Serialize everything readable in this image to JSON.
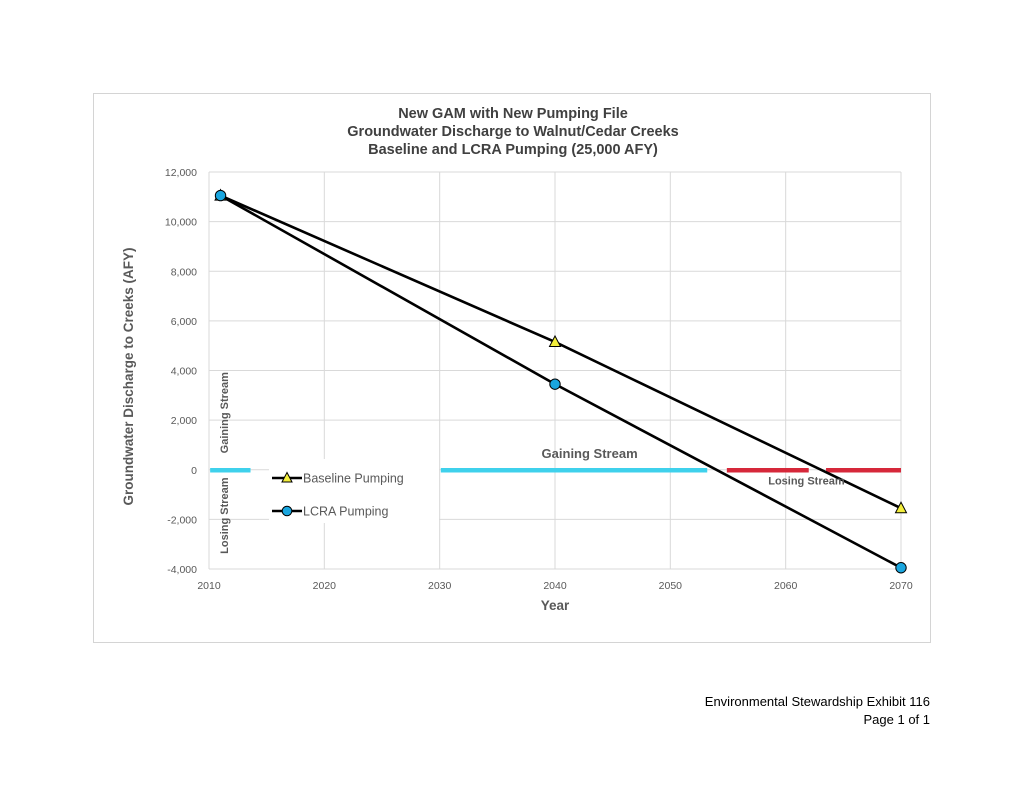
{
  "chart_data": {
    "type": "line",
    "title_lines": [
      "New GAM with New Pumping File",
      "Groundwater Discharge to Walnut/Cedar Creeks",
      "Baseline and LCRA Pumping (25,000 AFY)"
    ],
    "xlabel": "Year",
    "ylabel": "Groundwater Discharge to Creeks (AFY)",
    "xlim": [
      2010,
      2070
    ],
    "ylim": [
      -4000,
      12000
    ],
    "x_ticks": [
      2010,
      2020,
      2030,
      2040,
      2050,
      2060,
      2070
    ],
    "x_tick_labels": [
      "2010",
      "2020",
      "2030",
      "2040",
      "2050",
      "2060",
      "2070"
    ],
    "y_ticks": [
      -4000,
      -2000,
      0,
      2000,
      4000,
      6000,
      8000,
      10000,
      12000
    ],
    "y_tick_labels": [
      "-4,000",
      "-2,000",
      "0",
      "2,000",
      "4,000",
      "6,000",
      "8,000",
      "10,000",
      "12,000"
    ],
    "grid": true,
    "legend_position": "left",
    "series": [
      {
        "name": "Baseline Pumping",
        "marker": "triangle",
        "marker_color": "#f3ee3c",
        "line_color": "#000000",
        "x": [
          2011,
          2040,
          2070
        ],
        "y": [
          11050,
          5150,
          -1550
        ]
      },
      {
        "name": "LCRA Pumping",
        "marker": "circle",
        "marker_color": "#1aa6df",
        "line_color": "#000000",
        "x": [
          2011,
          2040,
          2070
        ],
        "y": [
          11050,
          3450,
          -3950
        ]
      }
    ],
    "annotations": [
      {
        "text": "Gaining Stream",
        "x": 2043,
        "y": 620,
        "rotate": 0,
        "size": 13
      },
      {
        "text": "Losing Stream",
        "x": 2061.8,
        "y": -480,
        "rotate": 0,
        "size": 11
      },
      {
        "text": "Gaining Stream",
        "x": 2011.4,
        "y": 2300,
        "rotate": -90,
        "size": 11
      },
      {
        "text": "Losing Stream",
        "x": 2011.4,
        "y": -1850,
        "rotate": -90,
        "size": 11
      }
    ],
    "indicator_lines": [
      {
        "kind": "gaining",
        "color": "#3fd1ec",
        "x": [
          2010.1,
          2013.6
        ],
        "y": 0
      },
      {
        "kind": "gaining",
        "color": "#3fd1ec",
        "x": [
          2030.1,
          2053.2
        ],
        "y": 0
      },
      {
        "kind": "losing",
        "color": "#d6283a",
        "x": [
          2054.9,
          2062
        ],
        "y": 0
      },
      {
        "kind": "losing",
        "color": "#d6283a",
        "x": [
          2063.5,
          2070
        ],
        "y": 0
      }
    ]
  },
  "footer": {
    "line1": "Environmental Stewardship Exhibit 116",
    "line2": "Page 1 of 1"
  }
}
